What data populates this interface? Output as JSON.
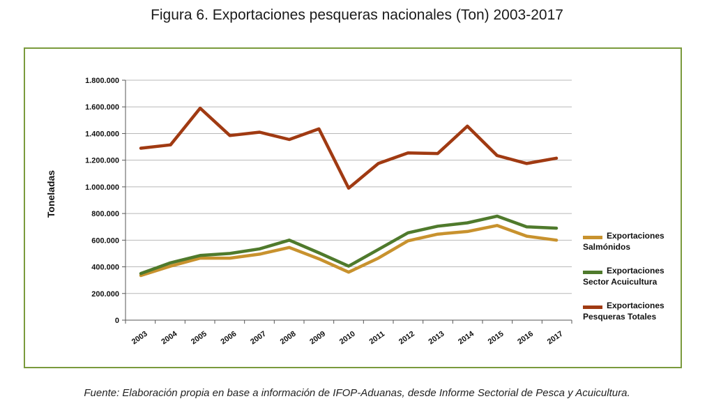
{
  "figure": {
    "title": "Figura 6. Exportaciones pesqueras nacionales (Ton) 2003-2017",
    "source": "Fuente: Elaboración propia en base a información de IFOP-Aduanas, desde Informe Sectorial de Pesca y Acuicultura."
  },
  "chart_data": {
    "type": "line",
    "title": "Figura 6. Exportaciones pesqueras nacionales (Ton) 2003-2017",
    "xlabel": "",
    "ylabel": "Toneladas",
    "x": [
      "2003",
      "2004",
      "2005",
      "2006",
      "2007",
      "2008",
      "2009",
      "2010",
      "2011",
      "2012",
      "2013",
      "2014",
      "2015",
      "2016",
      "2017"
    ],
    "ylim": [
      0,
      1800000
    ],
    "yticks": [
      0,
      200000,
      400000,
      600000,
      800000,
      1000000,
      1200000,
      1400000,
      1600000,
      1800000
    ],
    "ytick_labels": [
      "0",
      "200.000",
      "400.000",
      "600.000",
      "800.000",
      "1.000.000",
      "1.200.000",
      "1.400.000",
      "1.600.000",
      "1.800.000"
    ],
    "grid": true,
    "legend_position": "right",
    "series": [
      {
        "name": "Exportaciones Salmónidos",
        "color": "#c8922e",
        "values": [
          335000,
          405000,
          465000,
          465000,
          495000,
          545000,
          460000,
          360000,
          465000,
          595000,
          645000,
          665000,
          710000,
          630000,
          600000
        ]
      },
      {
        "name": "Exportaciones Sector Acuicultura",
        "color": "#4f7a2c",
        "values": [
          350000,
          430000,
          485000,
          500000,
          535000,
          600000,
          505000,
          405000,
          530000,
          655000,
          705000,
          730000,
          780000,
          700000,
          690000
        ]
      },
      {
        "name": "Exportaciones Pesqueras Totales",
        "color": "#a03a12",
        "values": [
          1290000,
          1315000,
          1590000,
          1385000,
          1410000,
          1355000,
          1435000,
          990000,
          1175000,
          1255000,
          1250000,
          1455000,
          1235000,
          1175000,
          1215000
        ]
      }
    ]
  }
}
